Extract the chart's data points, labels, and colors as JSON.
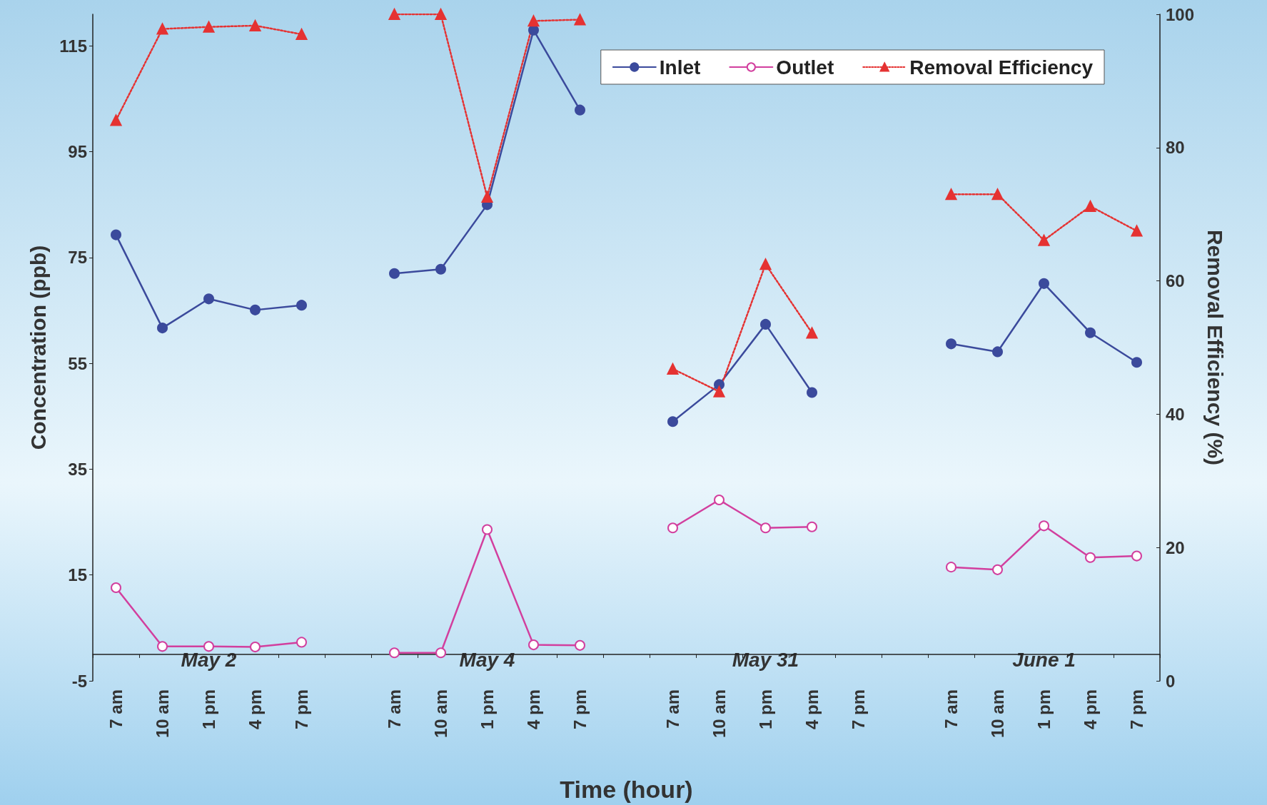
{
  "chart_data": {
    "type": "line",
    "xlabel": "Time (hour)",
    "ylabel": "Concentration (ppb)",
    "y2label": "Removal Efficiency (%)",
    "categories": [
      "7 am",
      "10 am",
      "1 pm",
      "4 pm",
      "7 pm",
      null,
      "7 am",
      "10 am",
      "1 pm",
      "4 pm",
      "7 pm",
      null,
      "7 am",
      "10 am",
      "1 pm",
      "4 pm",
      "7 pm",
      null,
      "7 am",
      "10 am",
      "1 pm",
      "4 pm",
      "7 pm"
    ],
    "series": [
      {
        "name": "Inlet",
        "color": "#3b4a9c",
        "marker": "circle",
        "line_style": "solid",
        "values": [
          79.3,
          61.7,
          67.2,
          65.1,
          66.0,
          null,
          72.0,
          72.8,
          85.0,
          118.0,
          102.9,
          null,
          44.0,
          51.0,
          62.4,
          49.5,
          null,
          null,
          58.7,
          57.2,
          70.1,
          60.8,
          55.2
        ]
      },
      {
        "name": "Outlet",
        "color": "#d23f9e",
        "marker": "circle",
        "line_style": "solid",
        "values": [
          12.6,
          1.5,
          1.5,
          1.4,
          2.3,
          null,
          0.3,
          0.3,
          23.6,
          1.8,
          1.7,
          null,
          23.9,
          29.2,
          23.9,
          24.1,
          null,
          null,
          16.5,
          16.0,
          24.3,
          18.3,
          18.6
        ]
      },
      {
        "name": "Removal Efficiency",
        "color": "#e53232",
        "marker": "triangle",
        "line_style": "dotted",
        "axis": "y2",
        "values": [
          84.1,
          97.8,
          98.1,
          98.3,
          97.0,
          null,
          100,
          100,
          72.6,
          99.0,
          99.2,
          null,
          46.8,
          43.4,
          62.5,
          52.2,
          null,
          null,
          73.0,
          73.0,
          66.1,
          71.2,
          67.5
        ]
      }
    ],
    "ylim": [
      -5,
      121
    ],
    "yticks": [
      -5,
      15,
      35,
      55,
      75,
      95,
      115
    ],
    "y2lim": [
      0,
      100
    ],
    "y2ticks": [
      0,
      20,
      40,
      60,
      80,
      100
    ],
    "annotations": [
      "May 2",
      "May 4",
      "May 31",
      "June 1"
    ],
    "grid": false,
    "legend": "top right"
  }
}
